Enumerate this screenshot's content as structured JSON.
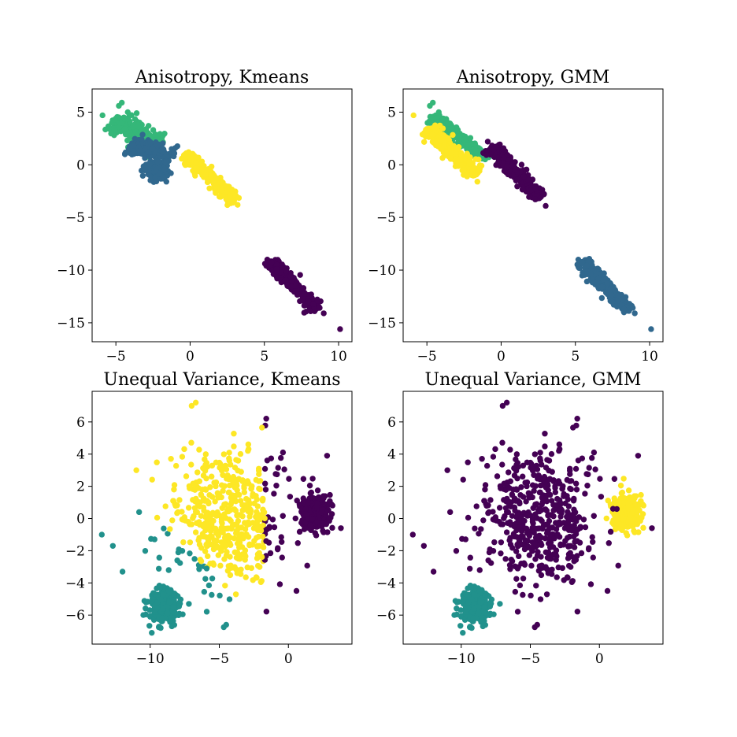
{
  "palette": {
    "purple": "#440154",
    "blue": "#31688e",
    "teal": "#21918c",
    "green": "#35b779",
    "yellow": "#fde725"
  },
  "chart_data": [
    {
      "type": "scatter",
      "title": "Anisotropy, Kmeans",
      "xlabel": "",
      "ylabel": "",
      "xlim": [
        -6.6,
        10.9
      ],
      "ylim": [
        -16.8,
        7.2
      ],
      "xticks": [
        -5,
        0,
        5,
        10
      ],
      "yticks": [
        5,
        0,
        -5,
        -10,
        -15
      ],
      "xtick_labels": [
        "−5",
        "0",
        "5",
        "10"
      ],
      "ytick_labels": [
        "5",
        "0",
        "−5",
        "−10",
        "−15"
      ],
      "grid": false,
      "clusters": [
        {
          "color": "green",
          "segments": [
            [
              -5.1,
              4.3,
              -2.0,
              1.7,
              0.5,
              1.0
            ]
          ],
          "sample": [
            [
              -4.6,
              5.9
            ],
            [
              -4.8,
              5.6
            ],
            [
              -5.9,
              4.7
            ],
            [
              -4.2,
              5.0
            ],
            [
              -3.6,
              4.9
            ],
            [
              -2.8,
              3.7
            ]
          ]
        },
        {
          "color": "blue",
          "segments": [
            [
              -4.0,
              2.0,
              -1.2,
              0.6,
              0.5,
              1.1
            ],
            [
              -2.8,
              0.1,
              -1.8,
              -1.3,
              0.4,
              0.8
            ]
          ],
          "sample": [
            [
              -1.6,
              -1.6
            ],
            [
              -1.0,
              1.6
            ]
          ]
        },
        {
          "color": "yellow",
          "segments": [
            [
              -0.3,
              1.0,
              3.0,
              -3.5,
              0.25,
              0.5
            ]
          ],
          "sample": [
            [
              -0.1,
              1.2
            ],
            [
              3.2,
              -3.8
            ]
          ]
        },
        {
          "color": "purple",
          "segments": [
            [
              5.4,
              -9.2,
              8.6,
              -13.8,
              0.25,
              0.6
            ]
          ],
          "sample": [
            [
              5.2,
              -9.0
            ],
            [
              10.1,
              -15.6
            ],
            [
              9.0,
              -14.1
            ]
          ]
        }
      ]
    },
    {
      "type": "scatter",
      "title": "Anisotropy, GMM",
      "xlabel": "",
      "ylabel": "",
      "xlim": [
        -6.6,
        10.9
      ],
      "ylim": [
        -16.8,
        7.2
      ],
      "xticks": [
        -5,
        0,
        5,
        10
      ],
      "yticks": [
        5,
        0,
        -5,
        -10,
        -15
      ],
      "xtick_labels": [
        "−5",
        "0",
        "5",
        "10"
      ],
      "ytick_labels": [
        "5",
        "0",
        "−5",
        "−10",
        "−15"
      ],
      "grid": false,
      "clusters": [
        {
          "color": "green",
          "segments": [
            [
              -4.7,
              4.6,
              -1.0,
              0.6,
              0.25,
              0.7
            ]
          ],
          "sample": [
            [
              -4.6,
              5.9
            ],
            [
              -4.8,
              5.6
            ],
            [
              -4.2,
              5.0
            ]
          ]
        },
        {
          "color": "yellow",
          "segments": [
            [
              -5.0,
              3.5,
              -1.7,
              -0.9,
              0.3,
              0.8
            ]
          ],
          "sample": [
            [
              -5.9,
              4.7
            ],
            [
              -1.6,
              -1.6
            ]
          ]
        },
        {
          "color": "purple",
          "segments": [
            [
              -0.6,
              1.7,
              2.6,
              -3.2,
              0.25,
              0.6
            ]
          ],
          "sample": [
            [
              -0.9,
              2.2
            ],
            [
              3.0,
              -3.9
            ]
          ]
        },
        {
          "color": "blue",
          "segments": [
            [
              5.4,
              -9.2,
              8.6,
              -13.8,
              0.25,
              0.6
            ]
          ],
          "sample": [
            [
              5.2,
              -9.0
            ],
            [
              10.1,
              -15.6
            ],
            [
              9.0,
              -14.1
            ]
          ]
        }
      ]
    },
    {
      "type": "scatter",
      "title": "Unequal Variance, Kmeans",
      "xlabel": "",
      "ylabel": "",
      "xlim": [
        -14.2,
        4.6
      ],
      "ylim": [
        -7.8,
        7.9
      ],
      "xticks": [
        -10,
        -5,
        0
      ],
      "yticks": [
        6,
        4,
        2,
        0,
        -2,
        -4,
        -6
      ],
      "xtick_labels": [
        "−10",
        "−5",
        "0"
      ],
      "ytick_labels": [
        "6",
        "4",
        "2",
        "0",
        "−2",
        "−4",
        "−6"
      ],
      "grid": false,
      "blobs": [
        {
          "center": [
            2.0,
            0.4
          ],
          "sd": [
            0.55,
            0.55
          ],
          "n": 300
        },
        {
          "center": [
            -9.0,
            -5.5
          ],
          "sd": [
            0.55,
            0.55
          ],
          "n": 300
        },
        {
          "center": [
            -4.5,
            0.0
          ],
          "sd": [
            2.2,
            2.0
          ],
          "n": 500
        }
      ],
      "assignment": "kmeans",
      "colors": {
        "right": "purple",
        "left": "teal",
        "middle": "yellow"
      }
    },
    {
      "type": "scatter",
      "title": "Unequal Variance, GMM",
      "xlabel": "",
      "ylabel": "",
      "xlim": [
        -14.2,
        4.6
      ],
      "ylim": [
        -7.8,
        7.9
      ],
      "xticks": [
        -10,
        -5,
        0
      ],
      "yticks": [
        6,
        4,
        2,
        0,
        -2,
        -4,
        -6
      ],
      "xtick_labels": [
        "−10",
        "−5",
        "0"
      ],
      "ytick_labels": [
        "6",
        "4",
        "2",
        "0",
        "−2",
        "−4",
        "−6"
      ],
      "grid": false,
      "blobs": [
        {
          "center": [
            2.0,
            0.4
          ],
          "sd": [
            0.55,
            0.55
          ],
          "n": 300
        },
        {
          "center": [
            -9.0,
            -5.5
          ],
          "sd": [
            0.55,
            0.55
          ],
          "n": 300
        },
        {
          "center": [
            -4.5,
            0.0
          ],
          "sd": [
            2.2,
            2.0
          ],
          "n": 500
        }
      ],
      "assignment": "gmm",
      "colors": {
        "right": "yellow",
        "left": "teal",
        "middle": "purple"
      }
    }
  ]
}
